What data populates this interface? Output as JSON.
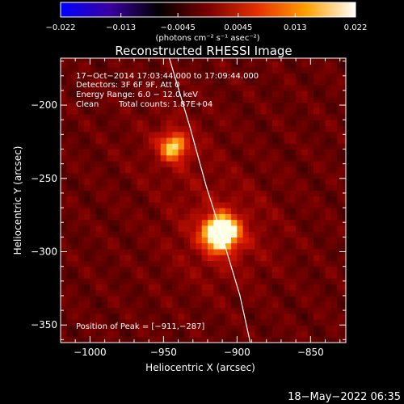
{
  "chart_data": {
    "type": "heatmap",
    "title": "Reconstructed RHESSI Image",
    "xlabel": "Heliocentric X (arcsec)",
    "ylabel": "Heliocentric Y (arcsec)",
    "xlim": [
      -1020,
      -826
    ],
    "ylim": [
      -362,
      -168
    ],
    "xticks": [
      -1000,
      -950,
      -900,
      -850
    ],
    "xtick_labels": [
      "−1000",
      "−950",
      "−900",
      "−850"
    ],
    "yticks": [
      -200,
      -250,
      -300,
      -350
    ],
    "ytick_labels": [
      "−200",
      "−250",
      "−300",
      "−350"
    ],
    "colorbar": {
      "label": "(photons cm⁻² s⁻¹ asec⁻²)",
      "range": [
        -0.022,
        0.022
      ],
      "ticks": [
        -0.022,
        -0.013,
        -0.0045,
        0.0045,
        0.013,
        0.022
      ],
      "tick_labels": [
        "−0.022",
        "−0.013",
        "−0.0045",
        "0.0045",
        "0.013",
        "0.022"
      ],
      "colors": [
        "#0000ff",
        "#3a00a0",
        "#000000",
        "#7a0000",
        "#e43000",
        "#ffa000",
        "#ffffff"
      ]
    },
    "annotations": {
      "time": "17−Oct−2014 17:03:44.000 to 17:09:44.000",
      "detectors": "Detectors: 3F 6F 9F, Att 0",
      "energy": "Energy Range: 6.0 − 12.0 keV",
      "clean": "Clean",
      "counts": "Total counts: 1.87E+04",
      "peak": "Position of Peak = [−911,−287]"
    },
    "sources": [
      {
        "x": -943,
        "y": -228,
        "sigma": 6.5,
        "amp": 0.6
      },
      {
        "x": -911,
        "y": -287,
        "sigma": 8.0,
        "amp": 1.0
      }
    ],
    "limb": [
      [
        -946,
        -168
      ],
      [
        -932,
        -215
      ],
      [
        -921,
        -255
      ],
      [
        -910,
        -290
      ],
      [
        -898,
        -330
      ],
      [
        -891,
        -362
      ]
    ],
    "timestamp": "18−May−2022 06:35"
  }
}
